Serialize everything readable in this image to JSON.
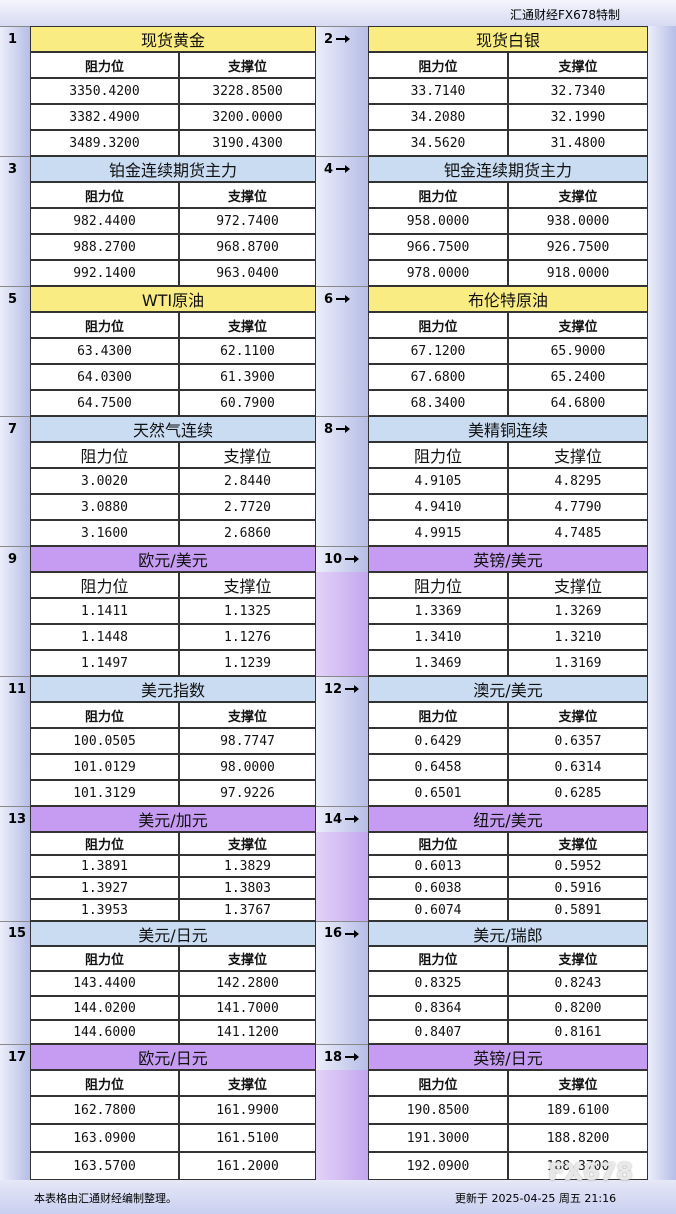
{
  "header": {
    "title": "汇通财经FX678特制"
  },
  "panels": [
    {
      "number": "1",
      "title": "现货黄金",
      "columns": [
        "阻力位",
        "支撑位"
      ],
      "rows": [
        [
          "3350.4200",
          "3228.8500"
        ],
        [
          "3382.4900",
          "3200.0000"
        ],
        [
          "3489.3200",
          "3190.4300"
        ]
      ]
    },
    {
      "number": "2",
      "title": "现货白银",
      "columns": [
        "阻力位",
        "支撑位"
      ],
      "rows": [
        [
          "33.7140",
          "32.7340"
        ],
        [
          "34.2080",
          "32.1990"
        ],
        [
          "34.5620",
          "31.4800"
        ]
      ]
    },
    {
      "number": "3",
      "title": "铂金连续期货主力",
      "columns": [
        "阻力位",
        "支撑位"
      ],
      "rows": [
        [
          "982.4400",
          "972.7400"
        ],
        [
          "988.2700",
          "968.8700"
        ],
        [
          "992.1400",
          "963.0400"
        ]
      ]
    },
    {
      "number": "4",
      "title": "钯金连续期货主力",
      "columns": [
        "阻力位",
        "支撑位"
      ],
      "rows": [
        [
          "958.0000",
          "938.0000"
        ],
        [
          "966.7500",
          "926.7500"
        ],
        [
          "978.0000",
          "918.0000"
        ]
      ]
    },
    {
      "number": "5",
      "title": "WTI原油",
      "columns": [
        "阻力位",
        "支撑位"
      ],
      "rows": [
        [
          "63.4300",
          "62.1100"
        ],
        [
          "64.0300",
          "61.3900"
        ],
        [
          "64.7500",
          "60.7900"
        ]
      ]
    },
    {
      "number": "6",
      "title": "布伦特原油",
      "columns": [
        "阻力位",
        "支撑位"
      ],
      "rows": [
        [
          "67.1200",
          "65.9000"
        ],
        [
          "67.6800",
          "65.2400"
        ],
        [
          "68.3400",
          "64.6800"
        ]
      ]
    },
    {
      "number": "7",
      "title": "天然气连续",
      "columns": [
        "阻力位",
        "支撑位"
      ],
      "rows": [
        [
          "3.0020",
          "2.8440"
        ],
        [
          "3.0880",
          "2.7720"
        ],
        [
          "3.1600",
          "2.6860"
        ]
      ]
    },
    {
      "number": "8",
      "title": "美精铜连续",
      "columns": [
        "阻力位",
        "支撑位"
      ],
      "rows": [
        [
          "4.9105",
          "4.8295"
        ],
        [
          "4.9410",
          "4.7790"
        ],
        [
          "4.9915",
          "4.7485"
        ]
      ]
    },
    {
      "number": "9",
      "title": "欧元/美元",
      "columns": [
        "阻力位",
        "支撑位"
      ],
      "rows": [
        [
          "1.1411",
          "1.1325"
        ],
        [
          "1.1448",
          "1.1276"
        ],
        [
          "1.1497",
          "1.1239"
        ]
      ]
    },
    {
      "number": "10",
      "title": "英镑/美元",
      "columns": [
        "阻力位",
        "支撑位"
      ],
      "rows": [
        [
          "1.3369",
          "1.3269"
        ],
        [
          "1.3410",
          "1.3210"
        ],
        [
          "1.3469",
          "1.3169"
        ]
      ]
    },
    {
      "number": "11",
      "title": "美元指数",
      "columns": [
        "阻力位",
        "支撑位"
      ],
      "rows": [
        [
          "100.0505",
          "98.7747"
        ],
        [
          "101.0129",
          "98.0000"
        ],
        [
          "101.3129",
          "97.9226"
        ]
      ]
    },
    {
      "number": "12",
      "title": "澳元/美元",
      "columns": [
        "阻力位",
        "支撑位"
      ],
      "rows": [
        [
          "0.6429",
          "0.6357"
        ],
        [
          "0.6458",
          "0.6314"
        ],
        [
          "0.6501",
          "0.6285"
        ]
      ]
    },
    {
      "number": "13",
      "title": "美元/加元",
      "columns": [
        "阻力位",
        "支撑位"
      ],
      "rows": [
        [
          "1.3891",
          "1.3829"
        ],
        [
          "1.3927",
          "1.3803"
        ],
        [
          "1.3953",
          "1.3767"
        ]
      ]
    },
    {
      "number": "14",
      "title": "纽元/美元",
      "columns": [
        "阻力位",
        "支撑位"
      ],
      "rows": [
        [
          "0.6013",
          "0.5952"
        ],
        [
          "0.6038",
          "0.5916"
        ],
        [
          "0.6074",
          "0.5891"
        ]
      ]
    },
    {
      "number": "15",
      "title": "美元/日元",
      "columns": [
        "阻力位",
        "支撑位"
      ],
      "rows": [
        [
          "143.4400",
          "142.2800"
        ],
        [
          "144.0200",
          "141.7000"
        ],
        [
          "144.6000",
          "141.1200"
        ]
      ]
    },
    {
      "number": "16",
      "title": "美元/瑞郎",
      "columns": [
        "阻力位",
        "支撑位"
      ],
      "rows": [
        [
          "0.8325",
          "0.8243"
        ],
        [
          "0.8364",
          "0.8200"
        ],
        [
          "0.8407",
          "0.8161"
        ]
      ]
    },
    {
      "number": "17",
      "title": "欧元/日元",
      "columns": [
        "阻力位",
        "支撑位"
      ],
      "rows": [
        [
          "162.7800",
          "161.9900"
        ],
        [
          "163.0900",
          "161.5100"
        ],
        [
          "163.5700",
          "161.2000"
        ]
      ]
    },
    {
      "number": "18",
      "title": "英镑/日元",
      "columns": [
        "阻力位",
        "支撑位"
      ],
      "rows": [
        [
          "190.8500",
          "189.6100"
        ],
        [
          "191.3000",
          "188.8200"
        ],
        [
          "192.0900",
          "188.3700"
        ]
      ]
    }
  ],
  "footer": {
    "note": "本表格由汇通财经编制整理。",
    "updated": "更新于 2025-04-25 周五 21:16"
  },
  "watermark": "FX678"
}
